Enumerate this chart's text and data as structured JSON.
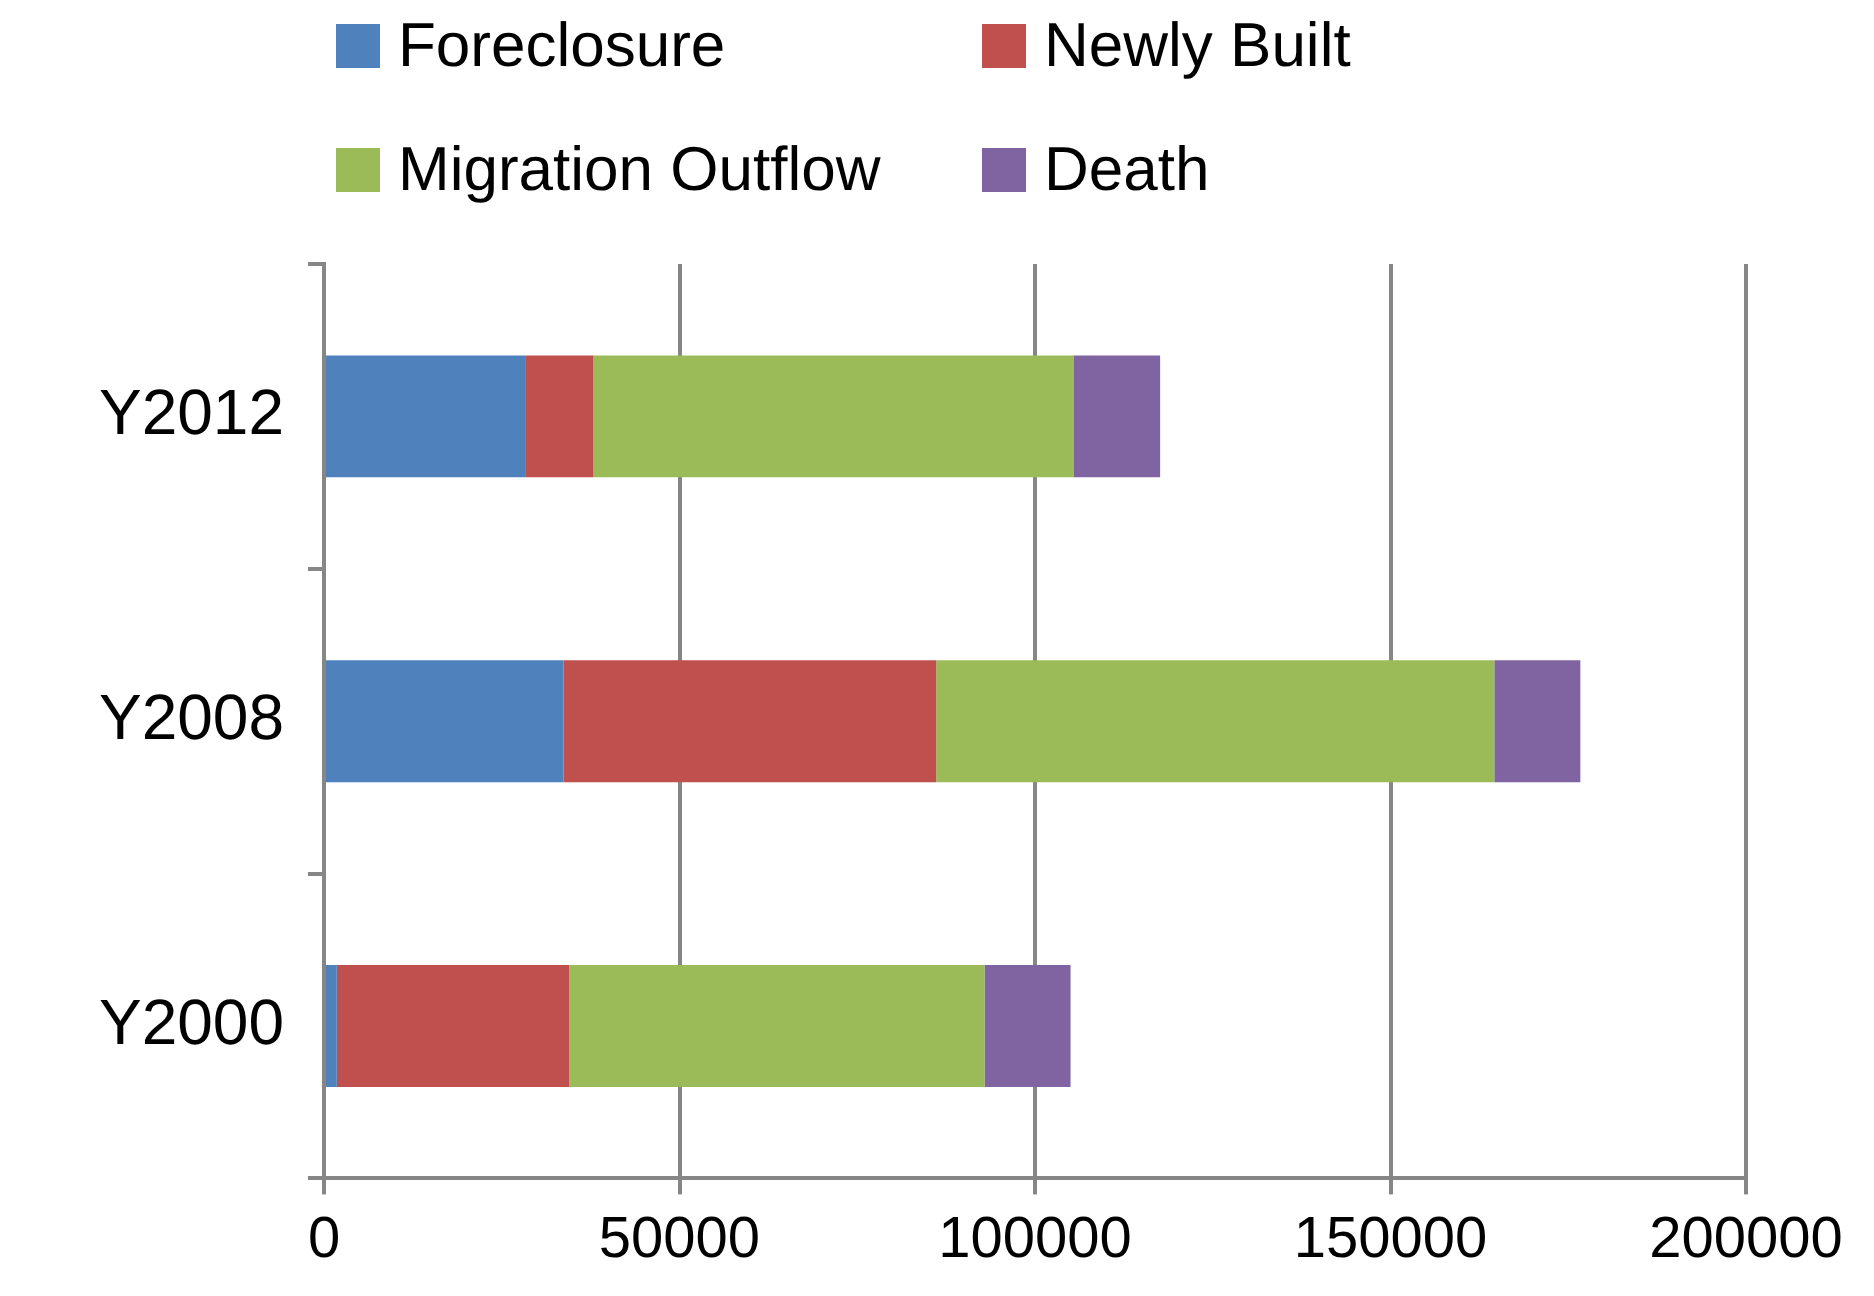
{
  "chart_data": {
    "type": "bar",
    "orientation": "horizontal",
    "stacked": true,
    "categories": [
      "Y2012",
      "Y2008",
      "Y2000"
    ],
    "series": [
      {
        "name": "Foreclosure",
        "color": "#4f81bd",
        "values": [
          28400,
          33700,
          1800
        ]
      },
      {
        "name": "Newly Built",
        "color": "#c0504d",
        "values": [
          9500,
          52400,
          32700
        ]
      },
      {
        "name": "Migration Outflow",
        "color": "#9bbb59",
        "values": [
          67500,
          78500,
          58400
        ]
      },
      {
        "name": "Death",
        "color": "#8064a2",
        "values": [
          12200,
          12100,
          12100
        ]
      }
    ],
    "xlim": [
      0,
      200000
    ],
    "xticks": [
      0,
      50000,
      100000,
      150000,
      200000
    ],
    "grid": "x",
    "legend": "top"
  }
}
